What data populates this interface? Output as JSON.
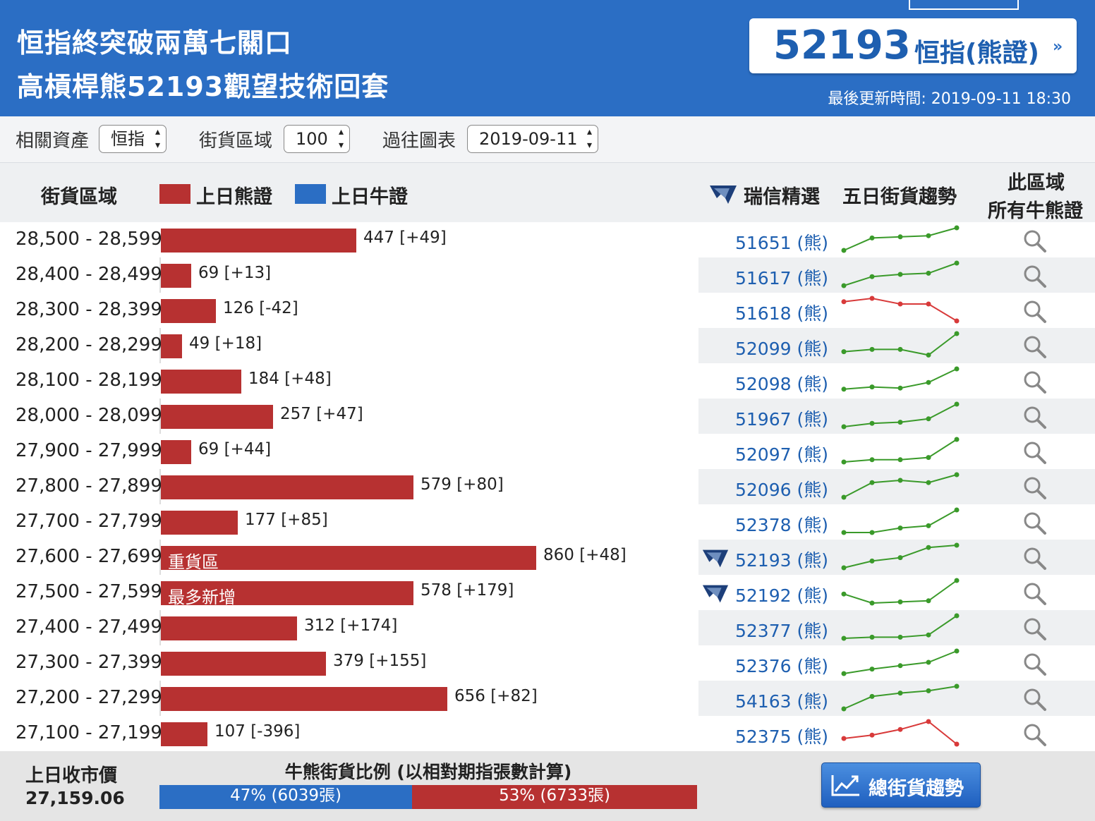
{
  "header": {
    "title_line1": "恒指終突破兩萬七關口",
    "title_line2": "高槓桿熊52193觀望技術回套",
    "product_code": "52193",
    "product_label": "恒指(熊證)",
    "product_arrow": "»",
    "last_update": "最後更新時間: 2019-09-11 18:30"
  },
  "filters": {
    "asset_label": "相關資產",
    "asset_value": "恒指",
    "zone_label": "街貨區域",
    "zone_value": "100",
    "history_label": "過往圖表",
    "history_value": "2019-09-11"
  },
  "columns": {
    "zone": "街貨區域",
    "legend_bear": "上日熊證",
    "legend_bull": "上日牛證",
    "ubs_pick": "瑞信精選",
    "five_day": "五日街貨趨勢",
    "all_line1": "此區域",
    "all_line2": "所有牛熊證"
  },
  "colors": {
    "header_blue": "#2b6ec4",
    "bear_red": "#b73131",
    "bull_blue": "#2b6ec4",
    "trend_up": "#3a9a2a",
    "trend_down": "#d83a3a"
  },
  "rows": [
    {
      "range": "28,500 - 28,599",
      "value": 447,
      "label": "447 [+49]",
      "code": "51651 (熊)",
      "tag": "",
      "ubs": false,
      "trend": [
        0,
        0.55,
        0.6,
        0.65,
        1
      ]
    },
    {
      "range": "28,400 - 28,499",
      "value": 69,
      "label": "69 [+13]",
      "code": "51617 (熊)",
      "tag": "",
      "ubs": false,
      "trend": [
        0,
        0.4,
        0.5,
        0.55,
        1
      ]
    },
    {
      "range": "28,300 - 28,399",
      "value": 126,
      "label": "126 [-42]",
      "code": "51618 (熊)",
      "tag": "",
      "ubs": false,
      "trend": [
        0.85,
        1,
        0.75,
        0.75,
        0
      ]
    },
    {
      "range": "28,200 - 28,299",
      "value": 49,
      "label": "49 [+18]",
      "code": "52099 (熊)",
      "tag": "",
      "ubs": false,
      "trend": [
        0.2,
        0.3,
        0.3,
        0.05,
        1
      ]
    },
    {
      "range": "28,100 - 28,199",
      "value": 184,
      "label": "184 [+48]",
      "code": "52098 (熊)",
      "tag": "",
      "ubs": false,
      "trend": [
        0.1,
        0.2,
        0.15,
        0.4,
        1
      ]
    },
    {
      "range": "28,000 - 28,099",
      "value": 257,
      "label": "257 [+47]",
      "code": "51967 (熊)",
      "tag": "",
      "ubs": false,
      "trend": [
        0,
        0.15,
        0.2,
        0.35,
        1
      ]
    },
    {
      "range": "27,900 - 27,999",
      "value": 69,
      "label": "69 [+44]",
      "code": "52097 (熊)",
      "tag": "",
      "ubs": false,
      "trend": [
        0,
        0.1,
        0.1,
        0.2,
        1
      ]
    },
    {
      "range": "27,800 - 27,899",
      "value": 579,
      "label": "579 [+80]",
      "code": "52096 (熊)",
      "tag": "",
      "ubs": false,
      "trend": [
        0,
        0.65,
        0.75,
        0.65,
        1
      ]
    },
    {
      "range": "27,700 - 27,799",
      "value": 177,
      "label": "177 [+85]",
      "code": "52378 (熊)",
      "tag": "",
      "ubs": false,
      "trend": [
        0,
        0,
        0.2,
        0.3,
        1
      ]
    },
    {
      "range": "27,600 - 27,699",
      "value": 860,
      "label": "860 [+48]",
      "code": "52193 (熊)",
      "tag": "重貨區",
      "ubs": true,
      "trend": [
        0,
        0.3,
        0.45,
        0.9,
        1
      ]
    },
    {
      "range": "27,500 - 27,599",
      "value": 578,
      "label": "578 [+179]",
      "code": "52192 (熊)",
      "tag": "最多新增",
      "ubs": true,
      "trend": [
        0.4,
        0,
        0.05,
        0.1,
        1
      ]
    },
    {
      "range": "27,400 - 27,499",
      "value": 312,
      "label": "312 [+174]",
      "code": "52377 (熊)",
      "tag": "",
      "ubs": false,
      "trend": [
        0,
        0.05,
        0.05,
        0.15,
        1
      ]
    },
    {
      "range": "27,300 - 27,399",
      "value": 379,
      "label": "379 [+155]",
      "code": "52376 (熊)",
      "tag": "",
      "ubs": false,
      "trend": [
        0,
        0.2,
        0.35,
        0.5,
        1
      ]
    },
    {
      "range": "27,200 - 27,299",
      "value": 656,
      "label": "656 [+82]",
      "code": "54163 (熊)",
      "tag": "",
      "ubs": false,
      "trend": [
        0,
        0.55,
        0.7,
        0.8,
        1
      ]
    },
    {
      "range": "27,100 - 27,199",
      "value": 107,
      "label": "107 [-396]",
      "code": "52375 (熊)",
      "tag": "",
      "ubs": false,
      "trend": [
        0.25,
        0.4,
        0.65,
        1,
        0
      ]
    }
  ],
  "footer": {
    "prev_close_label": "上日收市價",
    "prev_close_value": "27,159.06",
    "ratio_title": "牛熊街貨比例 (以相對期指張數計算)",
    "bull_pct": 47,
    "bear_pct": 53,
    "bull_text": "47% (6039張)",
    "bear_text": "53% (6733張)",
    "trend_button": "總街貨趨勢"
  }
}
